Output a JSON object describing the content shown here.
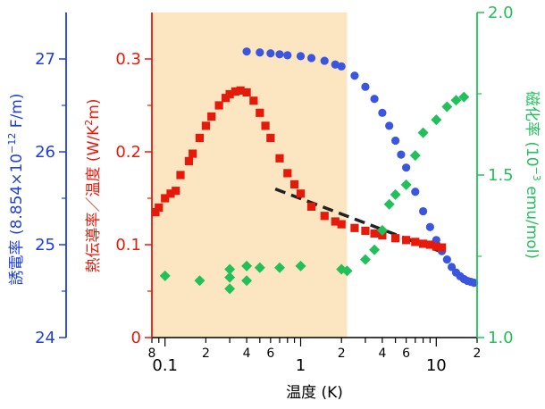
{
  "chart_data": {
    "type": "scatter",
    "title": "",
    "xlabel": "温度 (K)",
    "x_scale": "log",
    "xlim": [
      0.08,
      20
    ],
    "x_major_ticks": [
      0.1,
      1,
      10
    ],
    "x_major_labels": [
      "0.1",
      "1",
      "10"
    ],
    "x_minor_labeled": [
      0.08,
      0.2,
      0.4,
      0.6,
      2,
      4,
      6,
      20
    ],
    "x_minor_labels": [
      "8",
      "2",
      "4",
      "6",
      "2",
      "4",
      "6",
      "2"
    ],
    "highlight_band": {
      "x_range": [
        0.08,
        2.2
      ],
      "color": "#fce5c1"
    },
    "axes": {
      "dielectric": {
        "label_main": "誘電率 (8.854×10",
        "label_exp": "−12",
        "label_tail": " F/m)",
        "color": "#1f3fd8",
        "ylim": [
          24,
          27.5
        ],
        "ticks": [
          24,
          25,
          26,
          27
        ],
        "tick_labels": [
          "24",
          "25",
          "26",
          "27"
        ]
      },
      "thermal": {
        "label_main": "熱伝導率／温度 (W/K",
        "label_exp": "2",
        "label_tail": "m)",
        "color": "#e61a0a",
        "ylim": [
          0,
          0.35
        ],
        "ticks": [
          0,
          0.1,
          0.2,
          0.3
        ],
        "tick_labels": [
          "0",
          "0.1",
          "0.2",
          "0.3"
        ]
      },
      "magnetic": {
        "label_main": "磁化率 (10",
        "label_exp": "−3",
        "label_tail": " emu/mol)",
        "color": "#22c05a",
        "ylim": [
          1.0,
          2.0
        ],
        "ticks": [
          1.0,
          1.5,
          2.0
        ],
        "tick_labels": [
          "1.0",
          "1.5",
          "2.0"
        ]
      }
    },
    "series": [
      {
        "axis": "dielectric",
        "marker": "circle",
        "color": "#3a56e0",
        "x": [
          0.4,
          0.5,
          0.6,
          0.7,
          0.8,
          1.0,
          1.2,
          1.5,
          1.8,
          2.0,
          2.5,
          3.0,
          3.5,
          4.0,
          4.5,
          5.0,
          5.5,
          6.0,
          7.0,
          8.0,
          9.0,
          10.0,
          11.0,
          12.0,
          13.0,
          14.0,
          15.0,
          16.0,
          17.0,
          18.0,
          19.0
        ],
        "y": [
          27.08,
          27.07,
          27.06,
          27.05,
          27.04,
          27.03,
          27.01,
          26.98,
          26.94,
          26.92,
          26.82,
          26.7,
          26.57,
          26.42,
          26.28,
          26.12,
          25.97,
          25.83,
          25.57,
          25.36,
          25.19,
          25.05,
          24.93,
          24.84,
          24.76,
          24.7,
          24.66,
          24.63,
          24.61,
          24.6,
          24.59
        ]
      },
      {
        "axis": "thermal",
        "marker": "square",
        "color": "#e61a0a",
        "x": [
          0.085,
          0.09,
          0.1,
          0.11,
          0.12,
          0.13,
          0.15,
          0.16,
          0.18,
          0.2,
          0.22,
          0.25,
          0.28,
          0.3,
          0.33,
          0.36,
          0.4,
          0.45,
          0.5,
          0.55,
          0.6,
          0.7,
          0.8,
          0.9,
          1.0,
          1.2,
          1.5,
          1.8,
          2.0,
          2.5,
          3.0,
          3.5,
          4.0,
          5.0,
          6.0,
          7.0,
          8.0,
          9.0,
          10.0,
          11.0
        ],
        "y": [
          0.135,
          0.14,
          0.15,
          0.155,
          0.158,
          0.175,
          0.19,
          0.198,
          0.215,
          0.228,
          0.238,
          0.25,
          0.258,
          0.262,
          0.265,
          0.266,
          0.264,
          0.255,
          0.242,
          0.228,
          0.215,
          0.193,
          0.177,
          0.165,
          0.155,
          0.141,
          0.131,
          0.125,
          0.122,
          0.118,
          0.115,
          0.112,
          0.11,
          0.107,
          0.105,
          0.103,
          0.101,
          0.1,
          0.098,
          0.097
        ]
      },
      {
        "axis": "magnetic",
        "marker": "diamond",
        "color": "#22c05a",
        "x": [
          0.1,
          0.18,
          0.3,
          0.3,
          0.3,
          0.4,
          0.4,
          0.5,
          0.7,
          1.0,
          2.0,
          2.2,
          3.0,
          3.5,
          4.0,
          4.5,
          5.0,
          6.0,
          7.0,
          8.0,
          10.0,
          12.0,
          14.0,
          16.0
        ],
        "y": [
          1.19,
          1.175,
          1.15,
          1.185,
          1.21,
          1.175,
          1.22,
          1.215,
          1.215,
          1.22,
          1.21,
          1.205,
          1.24,
          1.27,
          1.33,
          1.41,
          1.44,
          1.47,
          1.56,
          1.63,
          1.67,
          1.71,
          1.73,
          1.74
        ]
      }
    ],
    "fit_line": {
      "axis": "thermal",
      "style": "dashed",
      "color": "#222222",
      "x": [
        0.65,
        12.0
      ],
      "y": [
        0.16,
        0.09
      ]
    }
  }
}
